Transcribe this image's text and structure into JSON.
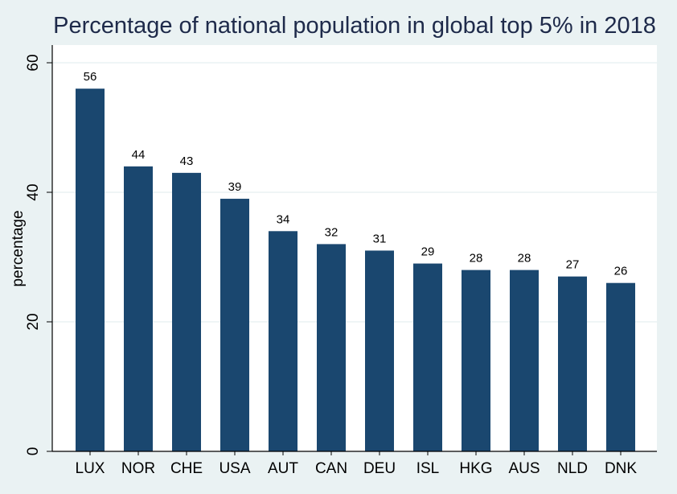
{
  "chart_data": {
    "type": "bar",
    "title": "Percentage of national population in global top 5% in 2018",
    "xlabel": "",
    "ylabel": "percentage",
    "categories": [
      "LUX",
      "NOR",
      "CHE",
      "USA",
      "AUT",
      "CAN",
      "DEU",
      "ISL",
      "HKG",
      "AUS",
      "NLD",
      "DNK"
    ],
    "values": [
      56,
      44,
      43,
      39,
      34,
      32,
      31,
      29,
      28,
      28,
      27,
      26
    ],
    "ylim": [
      0,
      60
    ],
    "yticks": [
      0,
      20,
      40,
      60
    ],
    "grid": true,
    "data_labels": true,
    "colors": {
      "bar": "#1a476f",
      "background": "#eaf2f3",
      "plot": "#ffffff",
      "grid": "#eaf2f3"
    }
  }
}
